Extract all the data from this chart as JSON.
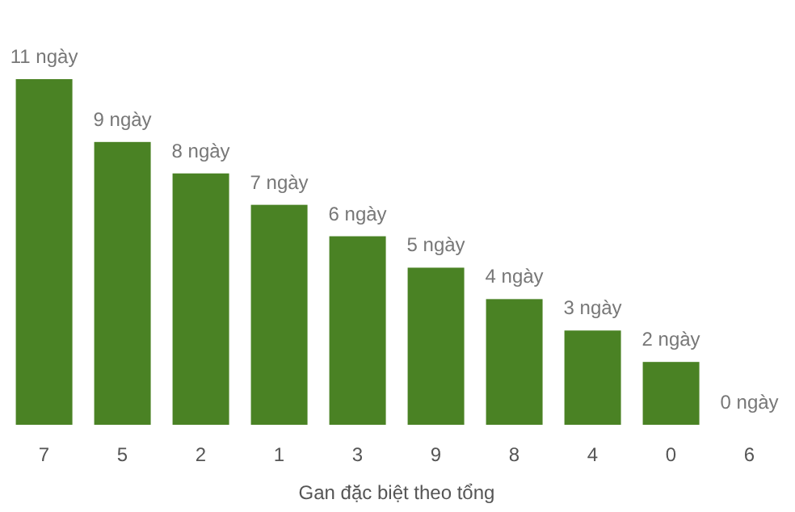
{
  "chart_data": {
    "type": "bar",
    "xlabel": "Gan đặc biệt theo tổng",
    "categories": [
      "7",
      "5",
      "2",
      "1",
      "3",
      "9",
      "8",
      "4",
      "0",
      "6"
    ],
    "values": [
      11,
      9,
      8,
      7,
      6,
      5,
      4,
      3,
      2,
      0
    ],
    "value_labels": [
      "11 ngày",
      "9 ngày",
      "8 ngày",
      "7 ngày",
      "6 ngày",
      "5 ngày",
      "4 ngày",
      "3 ngày",
      "2 ngày",
      "0 ngày"
    ],
    "color": "#4a8224",
    "grid": false,
    "legend": false
  }
}
